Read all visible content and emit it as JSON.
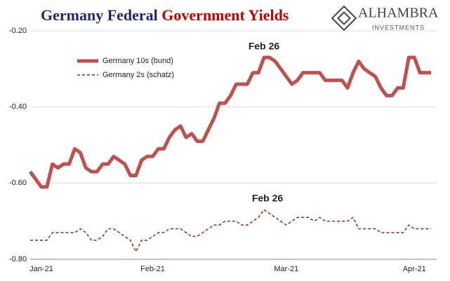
{
  "chart_data": {
    "type": "line",
    "title": [
      "Germany Federal",
      "Government Yields"
    ],
    "logo": {
      "name": "ALHAMBRA",
      "tagline": "INVESTMENTS"
    },
    "categories": [
      "Jan-21",
      null,
      null,
      null,
      null,
      null,
      null,
      null,
      null,
      null,
      null,
      null,
      null,
      null,
      null,
      null,
      null,
      null,
      null,
      null,
      null,
      null,
      "Feb-21",
      null,
      null,
      null,
      null,
      null,
      null,
      null,
      null,
      null,
      null,
      null,
      null,
      null,
      null,
      null,
      null,
      null,
      null,
      null,
      null,
      null,
      null,
      null,
      "Mar-21",
      null,
      null,
      null,
      null,
      null,
      null,
      null,
      null,
      null,
      null,
      null,
      null,
      null,
      null,
      null,
      null,
      null,
      null,
      null,
      null,
      null,
      null,
      "Apr-21",
      null,
      null,
      null
    ],
    "series": [
      {
        "name": "Germany 10s (bund)",
        "color": "#c0504d",
        "style": "solid",
        "values": [
          -0.57,
          -0.59,
          -0.61,
          -0.61,
          -0.55,
          -0.56,
          -0.55,
          -0.55,
          -0.51,
          -0.52,
          -0.56,
          -0.57,
          -0.57,
          -0.55,
          -0.55,
          -0.53,
          -0.54,
          -0.55,
          -0.58,
          -0.58,
          -0.54,
          -0.53,
          -0.53,
          -0.51,
          -0.51,
          -0.48,
          -0.46,
          -0.45,
          -0.48,
          -0.47,
          -0.49,
          -0.49,
          -0.46,
          -0.43,
          -0.39,
          -0.39,
          -0.37,
          -0.34,
          -0.34,
          -0.34,
          -0.31,
          -0.31,
          -0.27,
          -0.27,
          -0.28,
          -0.3,
          -0.32,
          -0.34,
          -0.33,
          -0.31,
          -0.31,
          -0.31,
          -0.31,
          -0.33,
          -0.33,
          -0.33,
          -0.33,
          -0.35,
          -0.31,
          -0.28,
          -0.3,
          -0.31,
          -0.32,
          -0.35,
          -0.37,
          -0.37,
          -0.35,
          -0.35,
          -0.27,
          -0.27,
          -0.31,
          -0.31,
          -0.31
        ]
      },
      {
        "name": "Germany 2s (schatz)",
        "color": "#8b2a22",
        "style": "dashed",
        "values": [
          -0.75,
          -0.75,
          -0.75,
          -0.75,
          -0.73,
          -0.73,
          -0.73,
          -0.73,
          -0.73,
          -0.72,
          -0.73,
          -0.75,
          -0.75,
          -0.74,
          -0.72,
          -0.72,
          -0.73,
          -0.74,
          -0.75,
          -0.78,
          -0.75,
          -0.75,
          -0.74,
          -0.73,
          -0.73,
          -0.72,
          -0.72,
          -0.72,
          -0.73,
          -0.74,
          -0.74,
          -0.73,
          -0.72,
          -0.71,
          -0.71,
          -0.7,
          -0.7,
          -0.7,
          -0.71,
          -0.71,
          -0.7,
          -0.69,
          -0.67,
          -0.68,
          -0.69,
          -0.7,
          -0.71,
          -0.7,
          -0.69,
          -0.69,
          -0.69,
          -0.7,
          -0.69,
          -0.7,
          -0.7,
          -0.7,
          -0.7,
          -0.7,
          -0.69,
          -0.72,
          -0.72,
          -0.72,
          -0.72,
          -0.73,
          -0.73,
          -0.73,
          -0.73,
          -0.73,
          -0.71,
          -0.72,
          -0.72,
          -0.72,
          -0.72
        ]
      }
    ],
    "annotations": [
      "Feb 26",
      "Feb 26"
    ],
    "ylim": [
      -0.8,
      -0.2
    ],
    "yticks": [
      {
        "value": -0.2,
        "label": "-0.20"
      },
      {
        "value": -0.4,
        "label": "-0.40"
      },
      {
        "value": -0.6,
        "label": "-0.60"
      },
      {
        "value": -0.8,
        "label": "-0.80"
      }
    ],
    "grid": true,
    "legend": "upper left"
  }
}
